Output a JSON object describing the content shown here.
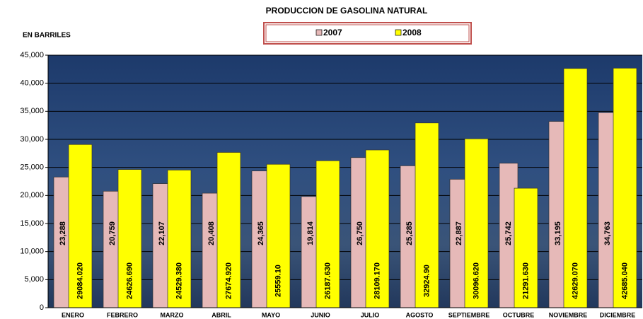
{
  "chart_data": {
    "type": "bar",
    "title": "PRODUCCION DE GASOLINA NATURAL",
    "y_label": "EN BARRILES",
    "categories": [
      "ENERO",
      "FEBRERO",
      "MARZO",
      "ABRIL",
      "MAYO",
      "JUNIO",
      "JULIO",
      "AGOSTO",
      "SEPTIEMBRE",
      "OCTUBRE",
      "NOVIEMBRE",
      "DICIEMBRE"
    ],
    "series": [
      {
        "name": "2007",
        "color": "#e6b9b8",
        "values": [
          23288,
          20759,
          22107,
          20408,
          24365,
          19814,
          26750,
          25285,
          22887,
          25742,
          33195,
          34763
        ],
        "value_labels": [
          "23,288",
          "20,759",
          "22,107",
          "20,408",
          "24,365",
          "19,814",
          "26,750",
          "25,285",
          "22,887",
          "25,742",
          "33,195",
          "34,763"
        ]
      },
      {
        "name": "2008",
        "color": "#ffff00",
        "values": [
          29084.02,
          24626.69,
          24529.38,
          27674.92,
          25559.1,
          26187.63,
          28109.17,
          32924.9,
          30096.62,
          21291.63,
          42629.07,
          42685.04
        ],
        "value_labels": [
          "29084.020",
          "24626.690",
          "24529.380",
          "27674.920",
          "25559.10",
          "26187.630",
          "28109.170",
          "32924.90",
          "30096.620",
          "21291.630",
          "42629.070",
          "42685.040"
        ]
      }
    ],
    "ylim": [
      0,
      45000
    ],
    "yticks": [
      0,
      {
        "value": 5000,
        "label": "5,000"
      },
      {
        "value": 10000,
        "label": "10,000"
      },
      {
        "value": 15000,
        "label": "15,000"
      },
      {
        "value": 20000,
        "label": "20,000"
      },
      {
        "value": 25000,
        "label": "25,000"
      },
      {
        "value": 30000,
        "label": "30,000"
      },
      {
        "value": 35000,
        "label": "35,000"
      },
      {
        "value": 40000,
        "label": "40,000"
      },
      {
        "value": 45000,
        "label": "45,000"
      }
    ],
    "grid": true
  }
}
